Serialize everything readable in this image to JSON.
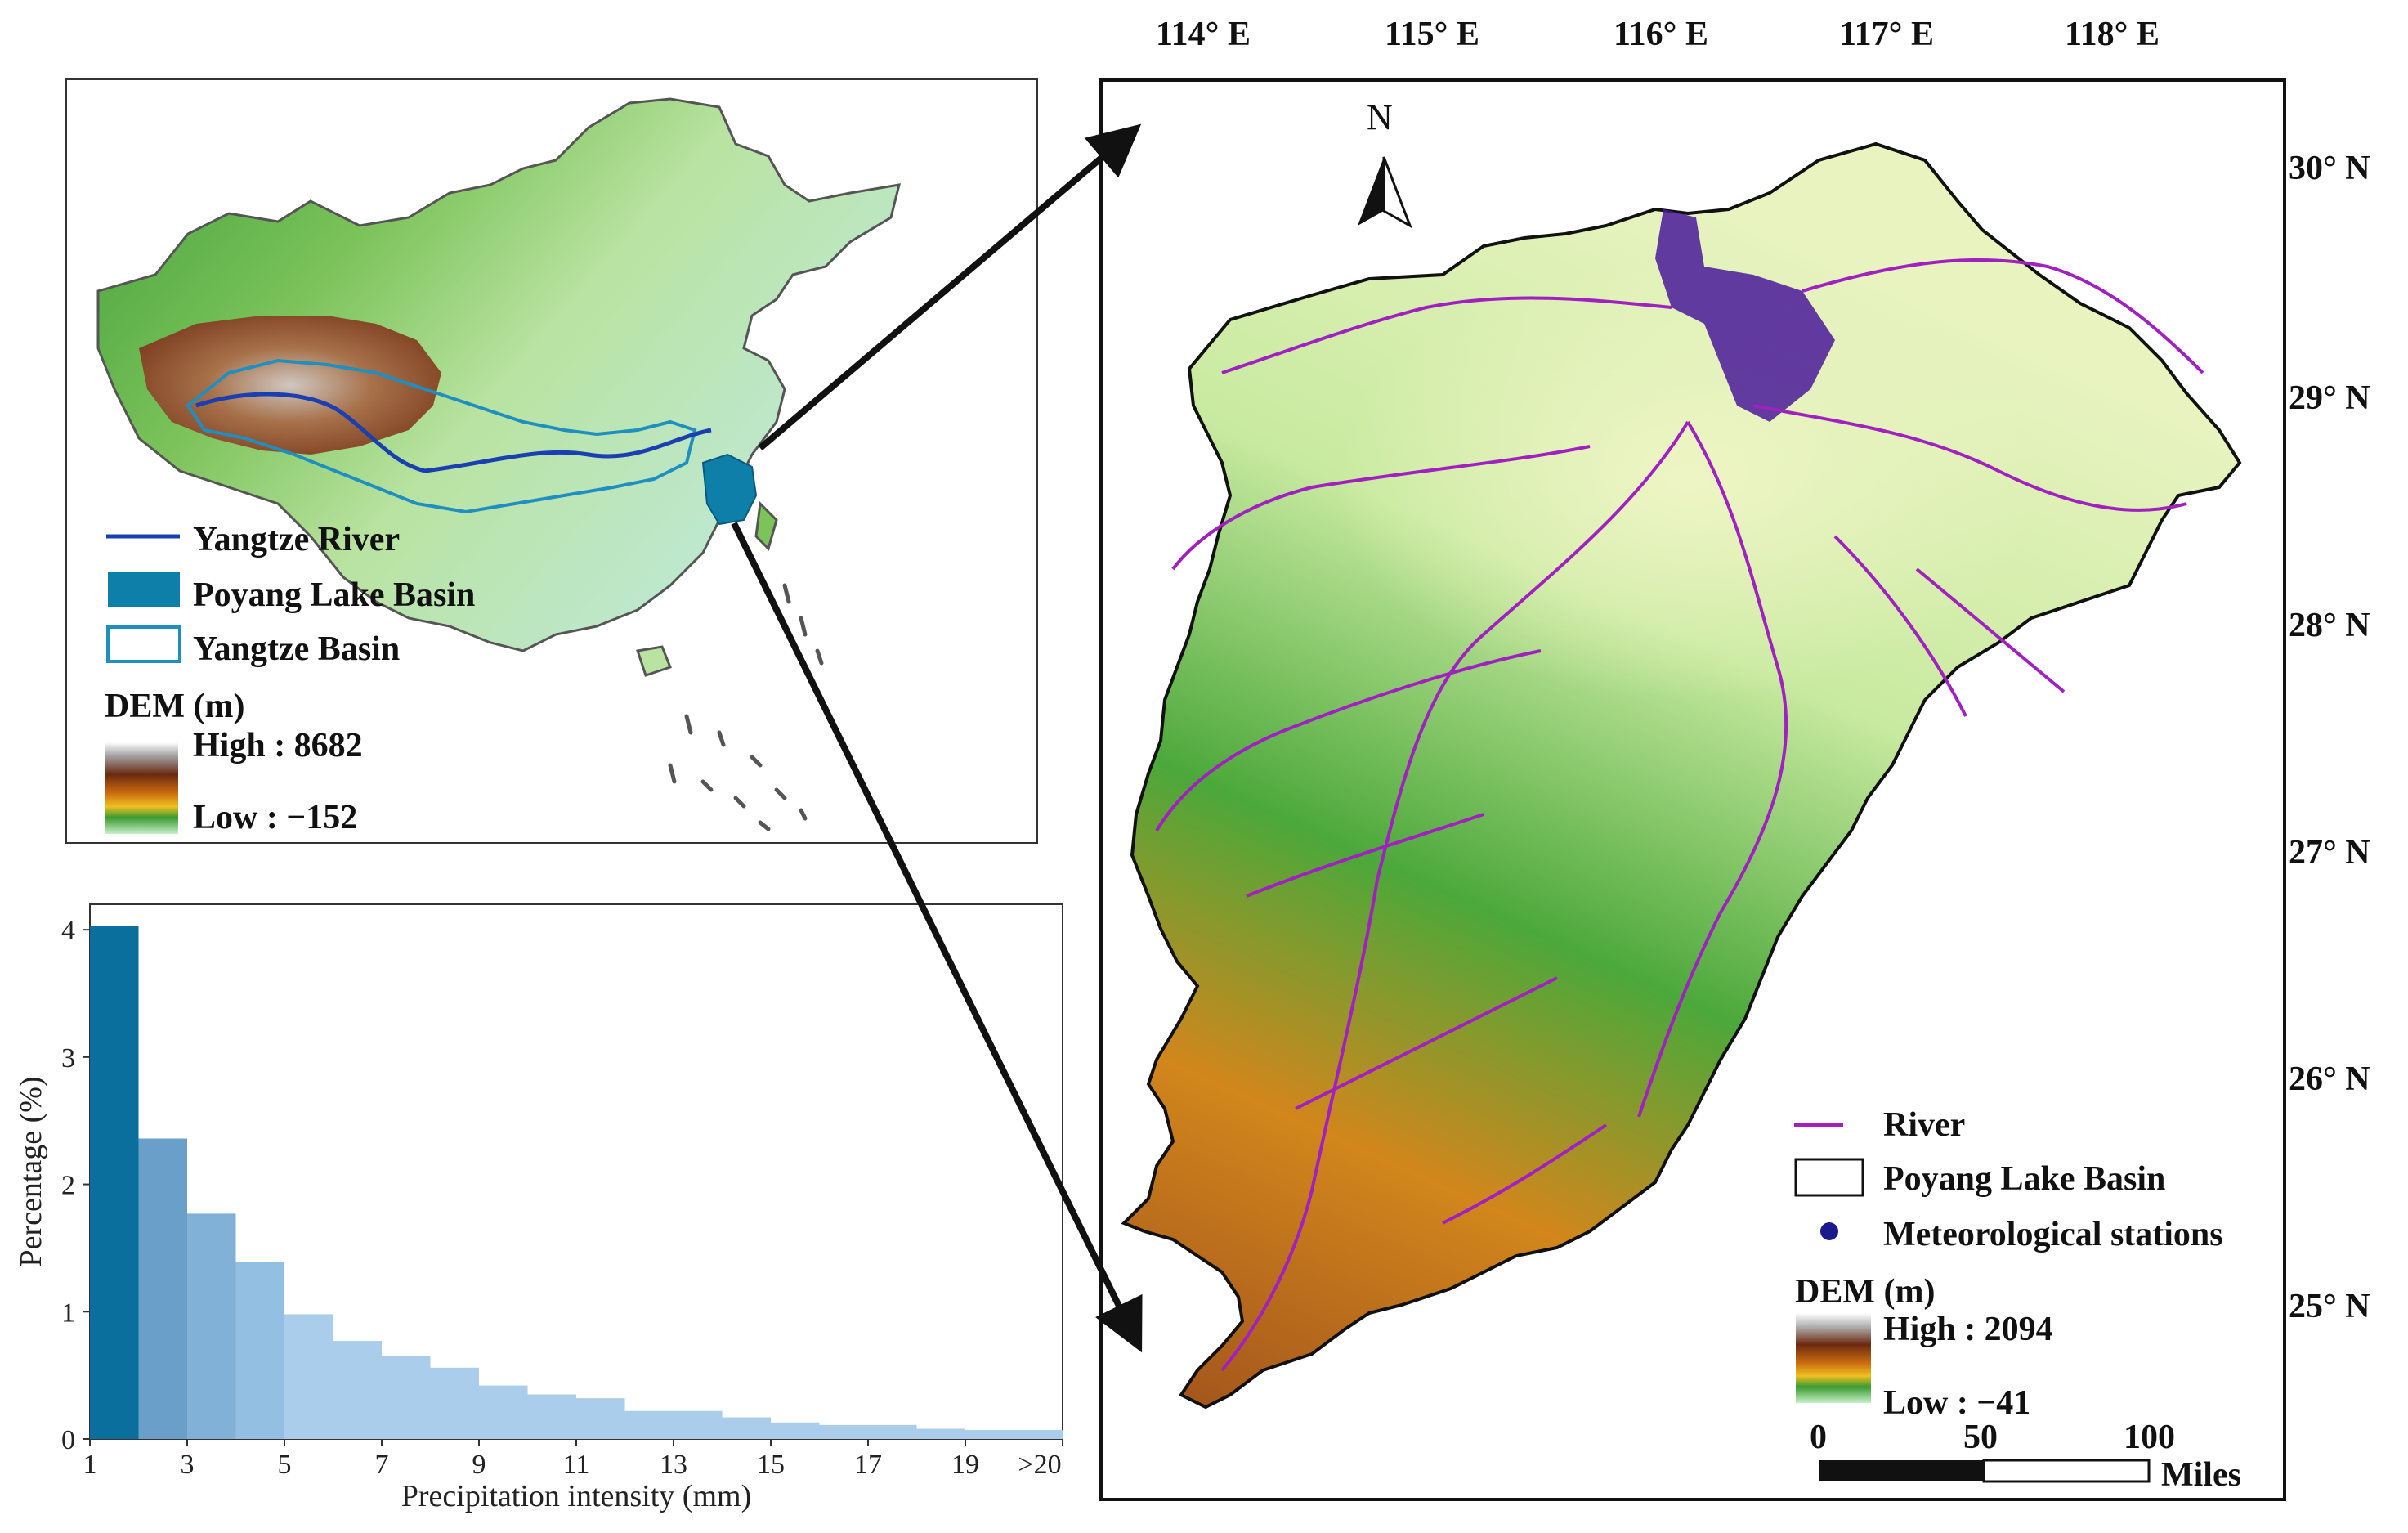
{
  "china_map": {
    "legend": {
      "yangtze_river": "Yangtze River",
      "poyang_basin": "Poyang Lake Basin",
      "yangtze_basin": "Yangtze Basin",
      "dem_title": "DEM (m)",
      "dem_high": "High : 8682",
      "dem_low": "Low : −152"
    },
    "colors": {
      "yangtze_river": "#1a3fb0",
      "poyang_fill": "#0e7fa8",
      "yangtze_outline": "#1f8fc0"
    }
  },
  "basin_map": {
    "longitude_labels": [
      "114° E",
      "115° E",
      "116° E",
      "117° E",
      "118° E"
    ],
    "latitude_labels": [
      "30° N",
      "29° N",
      "28° N",
      "27° N",
      "26° N",
      "25° N"
    ],
    "north_label": "N",
    "legend": {
      "river": "River",
      "basin": "Poyang Lake Basin",
      "stations": "Meteorological stations",
      "dem_title": "DEM (m)",
      "dem_high": "High : 2094",
      "dem_low": "Low : −41"
    },
    "scale_bar": {
      "ticks": [
        "0",
        "50",
        "100"
      ],
      "unit": "Miles"
    },
    "colors": {
      "river": "#a020c0",
      "station": "#1a1a8c"
    }
  },
  "chart_data": {
    "type": "bar",
    "xlabel": "Precipitation intensity (mm)",
    "ylabel": "Percentage (%)",
    "x_tick_labels": [
      "1",
      "3",
      "5",
      "7",
      "9",
      "11",
      "13",
      "15",
      "17",
      "19",
      ">20"
    ],
    "y_tick_labels": [
      "0",
      "1",
      "2",
      "3",
      "4"
    ],
    "ylim": [
      0,
      4.2
    ],
    "bins": [
      1,
      2,
      3,
      4,
      5,
      6,
      7,
      8,
      9,
      10,
      11,
      12,
      13,
      14,
      15,
      16,
      17,
      18,
      19,
      20
    ],
    "values": [
      4.03,
      2.36,
      1.77,
      1.39,
      0.98,
      0.77,
      0.65,
      0.56,
      0.42,
      0.35,
      0.32,
      0.22,
      0.22,
      0.17,
      0.13,
      0.11,
      0.11,
      0.08,
      0.07,
      0.07
    ]
  }
}
